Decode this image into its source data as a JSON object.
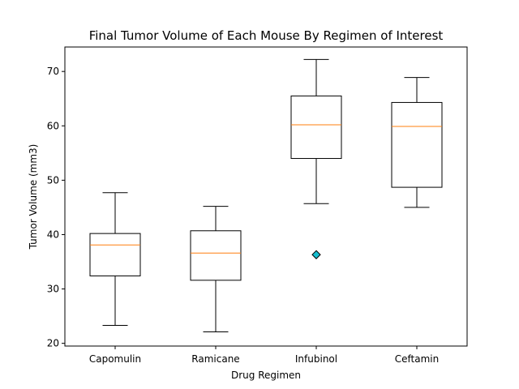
{
  "chart_data": {
    "type": "box",
    "title": "Final Tumor Volume of Each Mouse By Regimen of Interest",
    "xlabel": "Drug Regimen",
    "ylabel": "Tumor Volume (mm3)",
    "ylim": [
      19.5,
      74.5
    ],
    "yticks": [
      20,
      30,
      40,
      50,
      60,
      70
    ],
    "grid": false,
    "categories": [
      "Capomulin",
      "Ramicane",
      "Infubinol",
      "Ceftamin"
    ],
    "boxes": [
      {
        "name": "Capomulin",
        "whisker_low": 23.3,
        "q1": 32.4,
        "median": 38.1,
        "q3": 40.2,
        "whisker_high": 47.7,
        "outliers": []
      },
      {
        "name": "Ramicane",
        "whisker_low": 22.1,
        "q1": 31.6,
        "median": 36.6,
        "q3": 40.7,
        "whisker_high": 45.2,
        "outliers": []
      },
      {
        "name": "Infubinol",
        "whisker_low": 45.7,
        "q1": 54.0,
        "median": 60.2,
        "q3": 65.5,
        "whisker_high": 72.2,
        "outliers": [
          36.3
        ]
      },
      {
        "name": "Ceftamin",
        "whisker_low": 45.0,
        "q1": 48.7,
        "median": 59.9,
        "q3": 64.3,
        "whisker_high": 68.9,
        "outliers": []
      }
    ],
    "colors": {
      "box": "#000000",
      "median": "#ff7f0e",
      "outlier_fill": "#17becf",
      "outlier_edge": "#000000"
    },
    "outlier_marker": "diamond"
  }
}
